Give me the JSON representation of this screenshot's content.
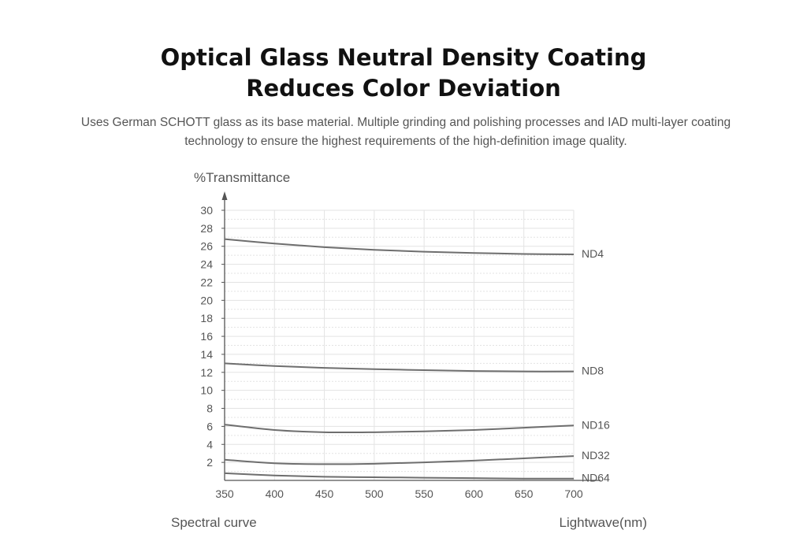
{
  "title_line1": "Optical Glass Neutral Density Coating",
  "title_line2": "Reduces Color Deviation",
  "subtitle": "Uses German SCHOTT glass as its base material. Multiple grinding and polishing processes and IAD multi-layer coating technology to ensure the highest requirements of the high-definition image quality.",
  "colors": {
    "line": "#6e6e6e",
    "grid": "#e3e3e3",
    "axis": "#555555"
  },
  "chart_data": {
    "type": "line",
    "ylabel": "%Transmittance",
    "xlabel": "Lightwave(nm)",
    "caption": "Spectral curve",
    "xlim": [
      350,
      700
    ],
    "ylim": [
      0,
      30
    ],
    "x_ticks": [
      "350",
      "400",
      "450",
      "500",
      "550",
      "600",
      "650",
      "700"
    ],
    "y_ticks": [
      "2",
      "4",
      "6",
      "8",
      "10",
      "12",
      "14",
      "16",
      "18",
      "20",
      "22",
      "24",
      "26",
      "28",
      "30"
    ],
    "grid": true,
    "series": [
      {
        "name": "ND4",
        "x": [
          350,
          400,
          450,
          500,
          550,
          600,
          650,
          700
        ],
        "y": [
          26.8,
          26.3,
          25.9,
          25.6,
          25.4,
          25.25,
          25.15,
          25.1
        ]
      },
      {
        "name": "ND8",
        "x": [
          350,
          400,
          450,
          500,
          550,
          600,
          650,
          700
        ],
        "y": [
          13.0,
          12.7,
          12.5,
          12.35,
          12.25,
          12.15,
          12.1,
          12.1
        ]
      },
      {
        "name": "ND16",
        "x": [
          350,
          400,
          450,
          500,
          550,
          600,
          650,
          700
        ],
        "y": [
          6.2,
          5.6,
          5.35,
          5.35,
          5.45,
          5.6,
          5.85,
          6.1
        ]
      },
      {
        "name": "ND32",
        "x": [
          350,
          400,
          450,
          500,
          550,
          600,
          650,
          700
        ],
        "y": [
          2.3,
          1.9,
          1.8,
          1.85,
          2.0,
          2.2,
          2.45,
          2.7
        ]
      },
      {
        "name": "ND64",
        "x": [
          350,
          400,
          450,
          500,
          550,
          600,
          650,
          700
        ],
        "y": [
          0.8,
          0.55,
          0.4,
          0.35,
          0.3,
          0.25,
          0.2,
          0.2
        ]
      }
    ]
  }
}
